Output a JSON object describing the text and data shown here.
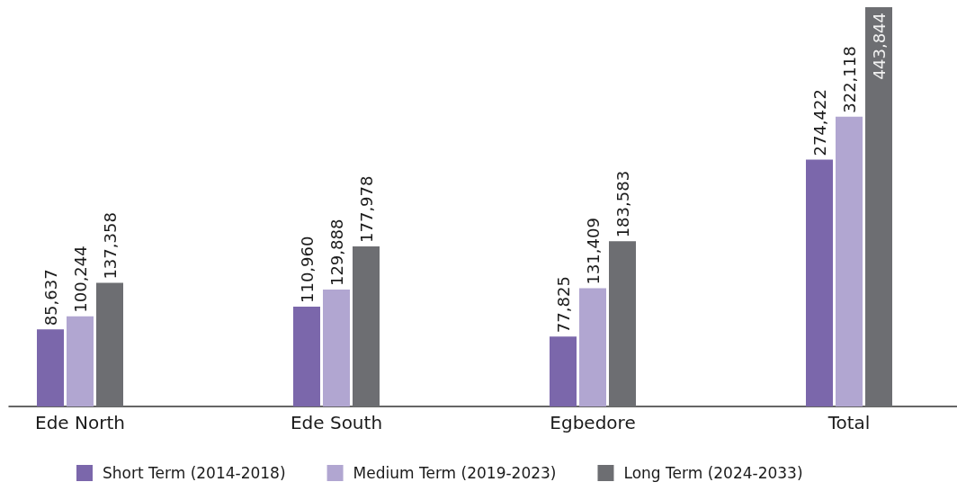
{
  "chart_data": {
    "type": "bar",
    "categories": [
      "Ede North",
      "Ede South",
      "Egbedore",
      "Total"
    ],
    "series": [
      {
        "name": "Short Term (2014-2018)",
        "color": "#7b67ab",
        "values": [
          85637,
          110960,
          77825,
          274422
        ],
        "value_labels": [
          "85,637",
          "110,960",
          "77,825",
          "274,422"
        ]
      },
      {
        "name": "Medium Term (2019-2023)",
        "color": "#b1a6d1",
        "values": [
          100244,
          129888,
          131409,
          322118
        ],
        "value_labels": [
          "100,244",
          "129,888",
          "131,409",
          "322,118"
        ]
      },
      {
        "name": "Long Term (2024-2033)",
        "color": "#6d6e72",
        "values": [
          137358,
          177978,
          183583,
          443844
        ],
        "value_labels": [
          "137,358",
          "177,978",
          "183,583",
          "443,844"
        ]
      }
    ],
    "grid": false,
    "legend": "bottom"
  }
}
